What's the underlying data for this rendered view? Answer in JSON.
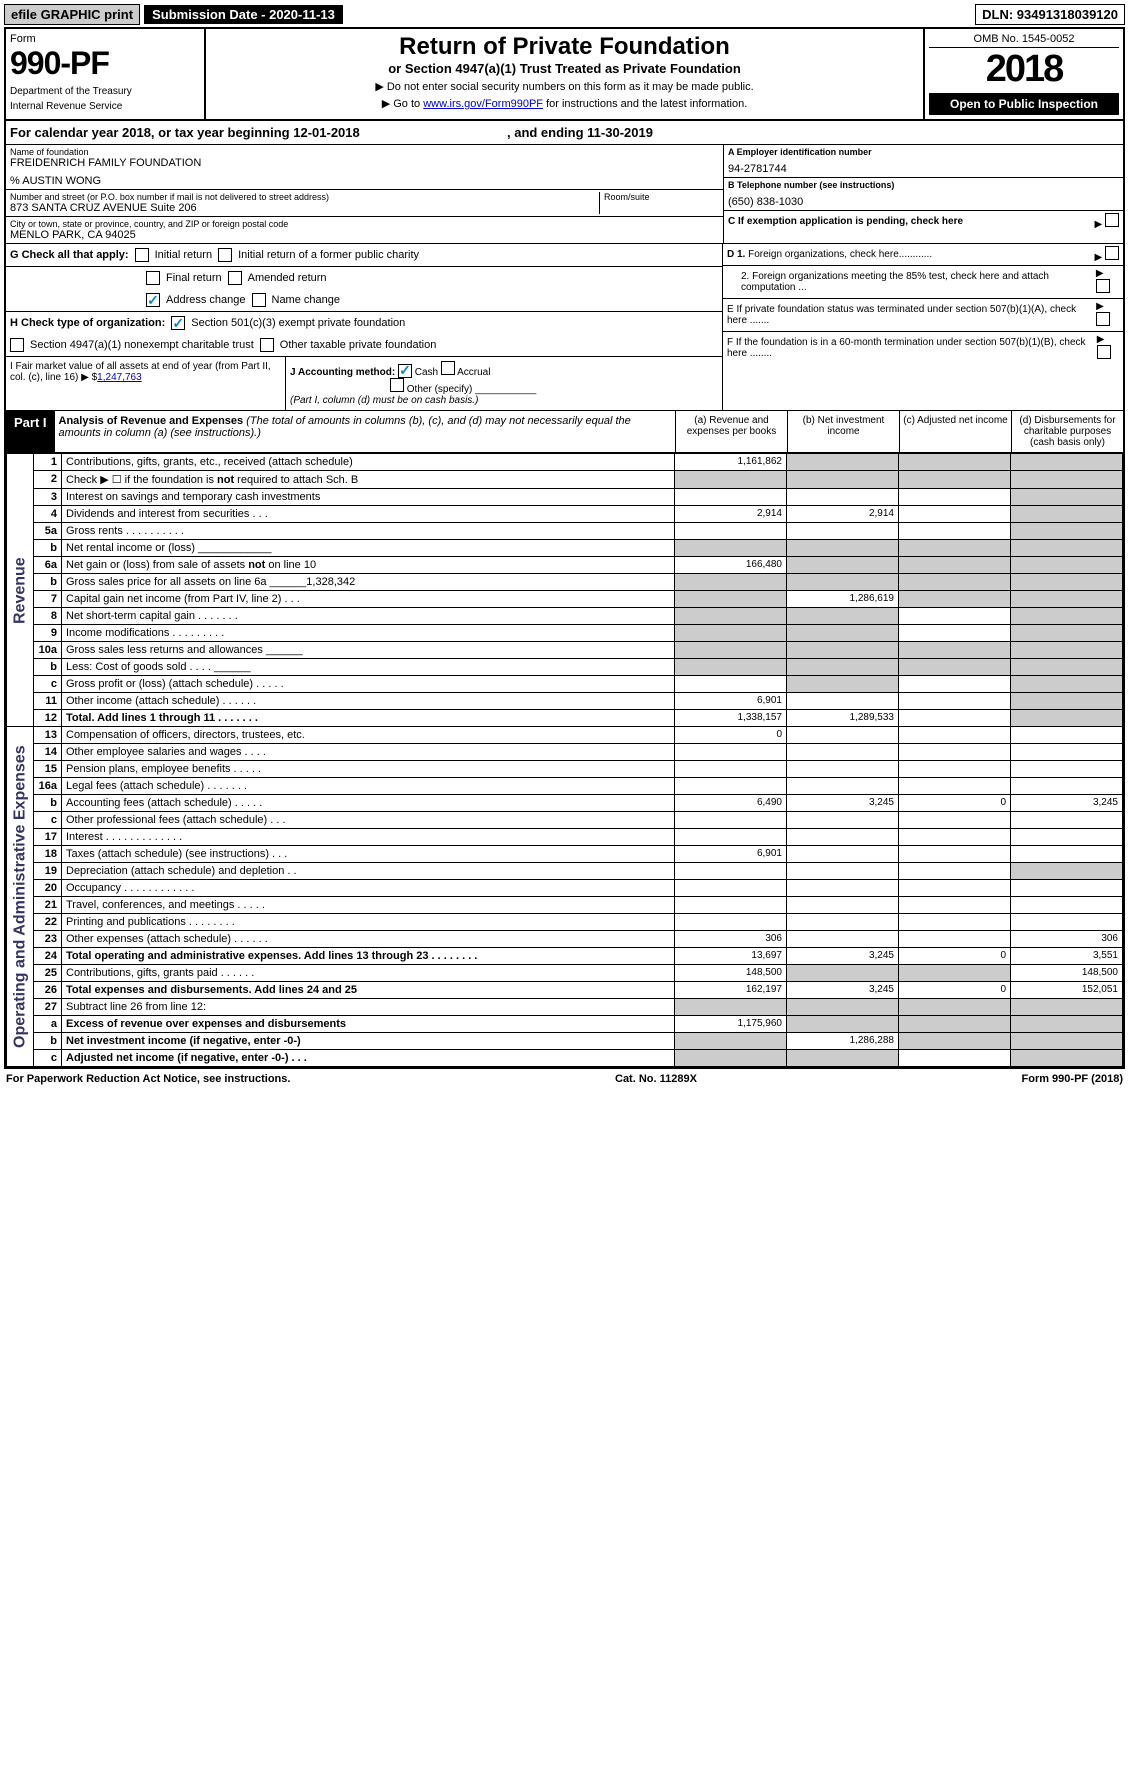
{
  "top_bar": {
    "efile": "efile GRAPHIC print",
    "submission": "Submission Date - 2020-11-13",
    "dln": "DLN: 93491318039120"
  },
  "header": {
    "form_label": "Form",
    "form_number": "990-PF",
    "dept1": "Department of the Treasury",
    "dept2": "Internal Revenue Service",
    "title": "Return of Private Foundation",
    "subtitle": "or Section 4947(a)(1) Trust Treated as Private Foundation",
    "instr1": "▶ Do not enter social security numbers on this form as it may be made public.",
    "instr2_pre": "▶ Go to ",
    "instr2_link": "www.irs.gov/Form990PF",
    "instr2_post": " for instructions and the latest information.",
    "omb": "OMB No. 1545-0052",
    "year": "2018",
    "open": "Open to Public Inspection"
  },
  "cal_year": {
    "text_pre": "For calendar year 2018, or tax year beginning ",
    "begin": "12-01-2018",
    "mid": " , and ending ",
    "end": "11-30-2019"
  },
  "info": {
    "name_label": "Name of foundation",
    "name": "FREIDENRICH FAMILY FOUNDATION",
    "care_of": "% AUSTIN WONG",
    "addr_label": "Number and street (or P.O. box number if mail is not delivered to street address)",
    "addr": "873 SANTA CRUZ AVENUE Suite 206",
    "room_label": "Room/suite",
    "city_label": "City or town, state or province, country, and ZIP or foreign postal code",
    "city": "MENLO PARK, CA  94025",
    "ein_label": "A Employer identification number",
    "ein": "94-2781744",
    "phone_label": "B Telephone number (see instructions)",
    "phone": "(650) 838-1030",
    "c_label": "C If exemption application is pending, check here",
    "d1_label": "D 1. Foreign organizations, check here............",
    "d2_label": "2. Foreign organizations meeting the 85% test, check here and attach computation ...",
    "e_label": "E If private foundation status was terminated under section 507(b)(1)(A), check here .......",
    "f_label": "F If the foundation is in a 60-month termination under section 507(b)(1)(B), check here ........"
  },
  "g": {
    "label": "G Check all that apply:",
    "initial": "Initial return",
    "initial_former": "Initial return of a former public charity",
    "final": "Final return",
    "amended": "Amended return",
    "address": "Address change",
    "name_change": "Name change"
  },
  "h": {
    "label": "H Check type of organization:",
    "501c3": "Section 501(c)(3) exempt private foundation",
    "4947": "Section 4947(a)(1) nonexempt charitable trust",
    "other_taxable": "Other taxable private foundation"
  },
  "i": {
    "label": "I Fair market value of all assets at end of year (from Part II, col. (c), line 16) ▶ $",
    "value": "1,247,763"
  },
  "j": {
    "label": "J Accounting method:",
    "cash": "Cash",
    "accrual": "Accrual",
    "other": "Other (specify)",
    "note": "(Part I, column (d) must be on cash basis.)"
  },
  "part1": {
    "tag": "Part I",
    "title": "Analysis of Revenue and Expenses",
    "note": "(The total of amounts in columns (b), (c), and (d) may not necessarily equal the amounts in column (a) (see instructions).)",
    "col_a": "(a) Revenue and expenses per books",
    "col_b": "(b) Net investment income",
    "col_c": "(c) Adjusted net income",
    "col_d": "(d) Disbursements for charitable purposes (cash basis only)"
  },
  "revenue_label": "Revenue",
  "expense_label": "Operating and Administrative Expenses",
  "rows": [
    {
      "n": "1",
      "desc": "Contributions, gifts, grants, etc., received (attach schedule)",
      "a": "1,161,862",
      "b": "",
      "c": "",
      "d": "",
      "shade_b": true,
      "shade_c": true,
      "shade_d": true
    },
    {
      "n": "2",
      "desc": "Check ▶ ☐ if the foundation is not required to attach Sch. B",
      "a": "",
      "b": "",
      "c": "",
      "d": "",
      "shade_a": true,
      "shade_b": true,
      "shade_c": true,
      "shade_d": true
    },
    {
      "n": "3",
      "desc": "Interest on savings and temporary cash investments",
      "a": "",
      "b": "",
      "c": "",
      "d": "",
      "shade_d": true
    },
    {
      "n": "4",
      "desc": "Dividends and interest from securities   .   .   .",
      "a": "2,914",
      "b": "2,914",
      "c": "",
      "d": "",
      "shade_d": true
    },
    {
      "n": "5a",
      "desc": "Gross rents   .   .   .   .   .   .   .   .   .   .",
      "a": "",
      "b": "",
      "c": "",
      "d": "",
      "shade_d": true
    },
    {
      "n": "b",
      "desc": "Net rental income or (loss)   ____________",
      "a": "",
      "b": "",
      "c": "",
      "d": "",
      "shade_a": true,
      "shade_b": true,
      "shade_c": true,
      "shade_d": true
    },
    {
      "n": "6a",
      "desc": "Net gain or (loss) from sale of assets not on line 10",
      "a": "166,480",
      "b": "",
      "c": "",
      "d": "",
      "shade_b": true,
      "shade_c": true,
      "shade_d": true
    },
    {
      "n": "b",
      "desc": "Gross sales price for all assets on line 6a ______1,328,342",
      "a": "",
      "b": "",
      "c": "",
      "d": "",
      "shade_a": true,
      "shade_b": true,
      "shade_c": true,
      "shade_d": true
    },
    {
      "n": "7",
      "desc": "Capital gain net income (from Part IV, line 2)   .   .   .",
      "a": "",
      "b": "1,286,619",
      "c": "",
      "d": "",
      "shade_a": true,
      "shade_c": true,
      "shade_d": true
    },
    {
      "n": "8",
      "desc": "Net short-term capital gain   .   .   .   .   .   .   .",
      "a": "",
      "b": "",
      "c": "",
      "d": "",
      "shade_a": true,
      "shade_b": true,
      "shade_d": true
    },
    {
      "n": "9",
      "desc": "Income modifications   .   .   .   .   .   .   .   .   .",
      "a": "",
      "b": "",
      "c": "",
      "d": "",
      "shade_a": true,
      "shade_b": true,
      "shade_d": true
    },
    {
      "n": "10a",
      "desc": "Gross sales less returns and allowances   ______",
      "a": "",
      "b": "",
      "c": "",
      "d": "",
      "shade_a": true,
      "shade_b": true,
      "shade_c": true,
      "shade_d": true
    },
    {
      "n": "b",
      "desc": "Less: Cost of goods sold   .   .   .   .   ______",
      "a": "",
      "b": "",
      "c": "",
      "d": "",
      "shade_a": true,
      "shade_b": true,
      "shade_c": true,
      "shade_d": true
    },
    {
      "n": "c",
      "desc": "Gross profit or (loss) (attach schedule)   .   .   .   .   .",
      "a": "",
      "b": "",
      "c": "",
      "d": "",
      "shade_b": true,
      "shade_d": true
    },
    {
      "n": "11",
      "desc": "Other income (attach schedule)   .   .   .   .   .   .",
      "a": "6,901",
      "b": "",
      "c": "",
      "d": "",
      "shade_d": true
    },
    {
      "n": "12",
      "desc": "Total. Add lines 1 through 11   .   .   .   .   .   .   .",
      "a": "1,338,157",
      "b": "1,289,533",
      "c": "",
      "d": "",
      "bold": true,
      "shade_d": true
    }
  ],
  "exp_rows": [
    {
      "n": "13",
      "desc": "Compensation of officers, directors, trustees, etc.",
      "a": "0",
      "b": "",
      "c": "",
      "d": ""
    },
    {
      "n": "14",
      "desc": "Other employee salaries and wages   .   .   .   .",
      "a": "",
      "b": "",
      "c": "",
      "d": ""
    },
    {
      "n": "15",
      "desc": "Pension plans, employee benefits   .   .   .   .   .",
      "a": "",
      "b": "",
      "c": "",
      "d": ""
    },
    {
      "n": "16a",
      "desc": "Legal fees (attach schedule)   .   .   .   .   .   .   .",
      "a": "",
      "b": "",
      "c": "",
      "d": ""
    },
    {
      "n": "b",
      "desc": "Accounting fees (attach schedule)   .   .   .   .   .",
      "a": "6,490",
      "b": "3,245",
      "c": "0",
      "d": "3,245"
    },
    {
      "n": "c",
      "desc": "Other professional fees (attach schedule)   .   .   .",
      "a": "",
      "b": "",
      "c": "",
      "d": ""
    },
    {
      "n": "17",
      "desc": "Interest   .   .   .   .   .   .   .   .   .   .   .   .   .",
      "a": "",
      "b": "",
      "c": "",
      "d": ""
    },
    {
      "n": "18",
      "desc": "Taxes (attach schedule) (see instructions)   .   .   .",
      "a": "6,901",
      "b": "",
      "c": "",
      "d": ""
    },
    {
      "n": "19",
      "desc": "Depreciation (attach schedule) and depletion   .   .",
      "a": "",
      "b": "",
      "c": "",
      "d": "",
      "shade_d": true
    },
    {
      "n": "20",
      "desc": "Occupancy   .   .   .   .   .   .   .   .   .   .   .   .",
      "a": "",
      "b": "",
      "c": "",
      "d": ""
    },
    {
      "n": "21",
      "desc": "Travel, conferences, and meetings   .   .   .   .   .",
      "a": "",
      "b": "",
      "c": "",
      "d": ""
    },
    {
      "n": "22",
      "desc": "Printing and publications   .   .   .   .   .   .   .   .",
      "a": "",
      "b": "",
      "c": "",
      "d": ""
    },
    {
      "n": "23",
      "desc": "Other expenses (attach schedule)   .   .   .   .   .   .",
      "a": "306",
      "b": "",
      "c": "",
      "d": "306"
    },
    {
      "n": "24",
      "desc": "Total operating and administrative expenses. Add lines 13 through 23   .   .   .   .   .   .   .   .",
      "a": "13,697",
      "b": "3,245",
      "c": "0",
      "d": "3,551",
      "bold": true
    },
    {
      "n": "25",
      "desc": "Contributions, gifts, grants paid   .   .   .   .   .   .",
      "a": "148,500",
      "b": "",
      "c": "",
      "d": "148,500",
      "shade_b": true,
      "shade_c": true
    },
    {
      "n": "26",
      "desc": "Total expenses and disbursements. Add lines 24 and 25",
      "a": "162,197",
      "b": "3,245",
      "c": "0",
      "d": "152,051",
      "bold": true
    },
    {
      "n": "27",
      "desc": "Subtract line 26 from line 12:",
      "a": "",
      "b": "",
      "c": "",
      "d": "",
      "shade_a": true,
      "shade_b": true,
      "shade_c": true,
      "shade_d": true
    },
    {
      "n": "a",
      "desc": "Excess of revenue over expenses and disbursements",
      "a": "1,175,960",
      "b": "",
      "c": "",
      "d": "",
      "bold": true,
      "shade_b": true,
      "shade_c": true,
      "shade_d": true
    },
    {
      "n": "b",
      "desc": "Net investment income (if negative, enter -0-)",
      "a": "",
      "b": "1,286,288",
      "c": "",
      "d": "",
      "bold": true,
      "shade_a": true,
      "shade_c": true,
      "shade_d": true
    },
    {
      "n": "c",
      "desc": "Adjusted net income (if negative, enter -0-)   .   .   .",
      "a": "",
      "b": "",
      "c": "",
      "d": "",
      "bold": true,
      "shade_a": true,
      "shade_b": true,
      "shade_d": true
    }
  ],
  "footer": {
    "left": "For Paperwork Reduction Act Notice, see instructions.",
    "mid": "Cat. No. 11289X",
    "right": "Form 990-PF (2018)"
  }
}
